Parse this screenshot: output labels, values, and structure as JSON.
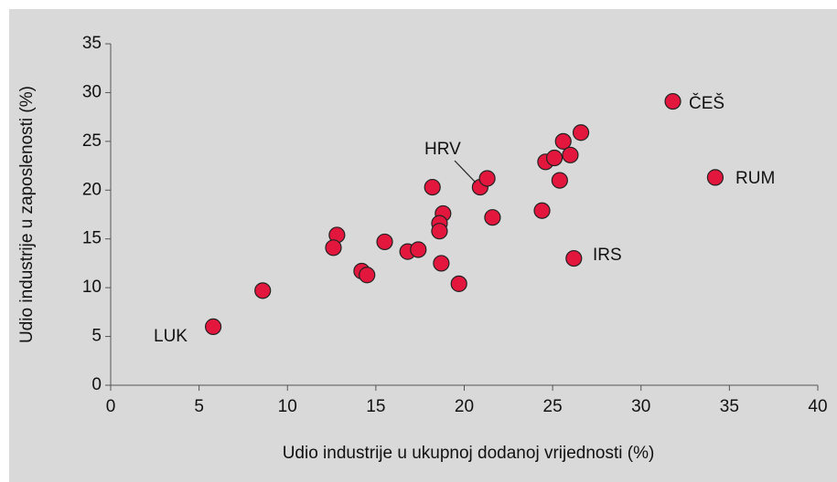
{
  "chart_data": {
    "type": "scatter",
    "x_label": "Udio industrije u ukupnoj dodanoj vrijednosti (%)",
    "y_label": "Udio industrije u zaposlenosti (%)",
    "color": "#e3173e",
    "x": [
      5.8,
      8.6,
      12.8,
      12.6,
      14.2,
      14.5,
      15.5,
      16.8,
      17.4,
      18.2,
      18.8,
      18.6,
      18.6,
      18.7,
      19.7,
      20.9,
      21.3,
      21.6,
      24.4,
      24.6,
      25.1,
      25.4,
      25.6,
      26.0,
      26.6,
      26.2,
      31.8,
      34.2
    ],
    "y": [
      6.0,
      9.7,
      15.4,
      14.1,
      11.7,
      11.3,
      14.7,
      13.7,
      13.9,
      20.3,
      17.6,
      16.6,
      15.8,
      12.5,
      10.4,
      20.3,
      21.2,
      17.2,
      17.9,
      22.9,
      23.3,
      21.0,
      25.0,
      23.6,
      25.9,
      13.0,
      29.1,
      21.3
    ],
    "xlim": [
      0,
      40
    ],
    "xticks": [
      0,
      5,
      10,
      15,
      20,
      25,
      30,
      35,
      40
    ],
    "ylim": [
      0,
      35
    ],
    "yticks": [
      0,
      5,
      10,
      15,
      20,
      25,
      30,
      35
    ],
    "annotations": [
      "LUK",
      "HRV",
      "ČEŠ",
      "RUM",
      "IRS"
    ]
  }
}
